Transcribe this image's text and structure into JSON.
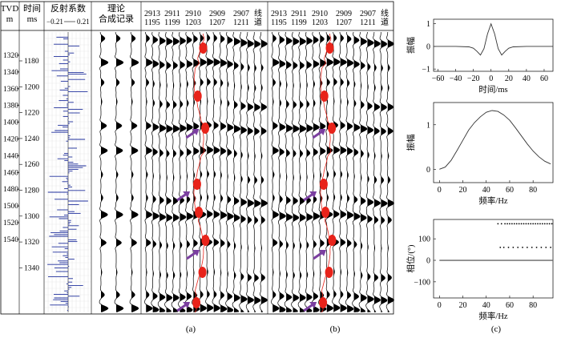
{
  "left_panel": {
    "tvd_label": "TVD",
    "tvd_unit": "m",
    "time_label": "时间",
    "time_unit": "ms",
    "refl_label": "反射系数",
    "refl_neg": "−0.21",
    "refl_pos": "0.21",
    "synth_label_1": "理论",
    "synth_label_2": "合成记录",
    "tvd_ticks": [
      "1320",
      "1340",
      "1360",
      "1380",
      "1400",
      "1420",
      "1440",
      "1460",
      "1480",
      "1500",
      "1520",
      "1540"
    ],
    "time_ticks": [
      "1180",
      "1200",
      "1220",
      "1240",
      "1260",
      "1280",
      "1300",
      "1320",
      "1340"
    ]
  },
  "seismic_a": {
    "traces": [
      {
        "top": "2913",
        "bottom": "1195"
      },
      {
        "top": "2911",
        "bottom": "1199"
      },
      {
        "top": "2910",
        "bottom": "1203"
      },
      {
        "top": "2909",
        "bottom": "1207"
      },
      {
        "top": "2907",
        "bottom": "1211"
      }
    ],
    "well_label_1": "线",
    "well_label_2": "道"
  },
  "seismic_b": {
    "traces": [
      {
        "top": "2913",
        "bottom": "1195"
      },
      {
        "top": "2911",
        "bottom": "1199"
      },
      {
        "top": "2910",
        "bottom": "1203"
      },
      {
        "top": "2909",
        "bottom": "1207"
      },
      {
        "top": "2907",
        "bottom": "1211"
      }
    ],
    "well_label_1": "线",
    "well_label_2": "道"
  },
  "panel_labels": {
    "a": "(a)",
    "b": "(b)",
    "c": "(c)"
  },
  "colors": {
    "highlight": "#e8231a",
    "arrow": "#7b3fa0",
    "trace_fill": "#000000",
    "axis": "#000000"
  },
  "chart_data": [
    {
      "type": "line",
      "ylabel": "振幅",
      "xlabel": "时间/ms",
      "xlim": [
        -65,
        70
      ],
      "ylim": [
        -1.1,
        1.2
      ],
      "xticks": [
        "−60",
        "−40",
        "−20",
        "0",
        "20",
        "40",
        "60"
      ],
      "xtick_values": [
        -60,
        -40,
        -20,
        0,
        20,
        40,
        60
      ],
      "yticks": [
        "1",
        "0",
        "−1"
      ],
      "ytick_values": [
        1,
        0,
        -1
      ],
      "x": [
        -65,
        -40,
        -25,
        -20,
        -16,
        -12,
        -8,
        -4,
        0,
        4,
        8,
        12,
        16,
        20,
        25,
        40,
        70
      ],
      "y": [
        0,
        0,
        -0.02,
        -0.08,
        -0.22,
        -0.38,
        -0.1,
        0.55,
        1.0,
        0.55,
        -0.1,
        -0.38,
        -0.22,
        -0.08,
        -0.02,
        0,
        0
      ]
    },
    {
      "type": "line",
      "ylabel": "振幅",
      "xlabel": "频率/Hz",
      "xlim": [
        -5,
        97
      ],
      "ylim": [
        -0.3,
        1.5
      ],
      "xticks": [
        "0",
        "20",
        "40",
        "60",
        "80"
      ],
      "xtick_values": [
        0,
        20,
        40,
        60,
        80
      ],
      "yticks": [
        "1",
        "0"
      ],
      "ytick_values": [
        1,
        0
      ],
      "x": [
        0,
        5,
        10,
        15,
        20,
        25,
        30,
        35,
        40,
        45,
        50,
        55,
        60,
        65,
        70,
        75,
        80,
        85,
        90,
        95
      ],
      "y": [
        0,
        0.05,
        0.2,
        0.42,
        0.65,
        0.88,
        1.05,
        1.18,
        1.28,
        1.32,
        1.3,
        1.22,
        1.1,
        0.93,
        0.75,
        0.57,
        0.41,
        0.28,
        0.18,
        0.12
      ]
    },
    {
      "type": "scatter",
      "ylabel": "相位/(°)",
      "xlabel": "频率/Hz",
      "xlim": [
        -5,
        97
      ],
      "ylim": [
        -175,
        190
      ],
      "xticks": [
        "0",
        "20",
        "40",
        "60",
        "80"
      ],
      "xtick_values": [
        0,
        20,
        40,
        60,
        80
      ],
      "yticks": [
        "100",
        "0",
        "−100"
      ],
      "ytick_values": [
        100,
        0,
        -100
      ],
      "zero_line": {
        "x": [
          0,
          97
        ],
        "y": [
          0,
          0
        ]
      },
      "points_upper": {
        "x": [
          50,
          53,
          56,
          58,
          60,
          62,
          64,
          66,
          68,
          70,
          72,
          74,
          76,
          78,
          80,
          82,
          84,
          86,
          88,
          90,
          92,
          94,
          96
        ],
        "y": 170
      },
      "points_lower": {
        "x": [
          52,
          55,
          59,
          63,
          67,
          71,
          75,
          79,
          83,
          87,
          91,
          95
        ],
        "y": 60
      }
    }
  ]
}
